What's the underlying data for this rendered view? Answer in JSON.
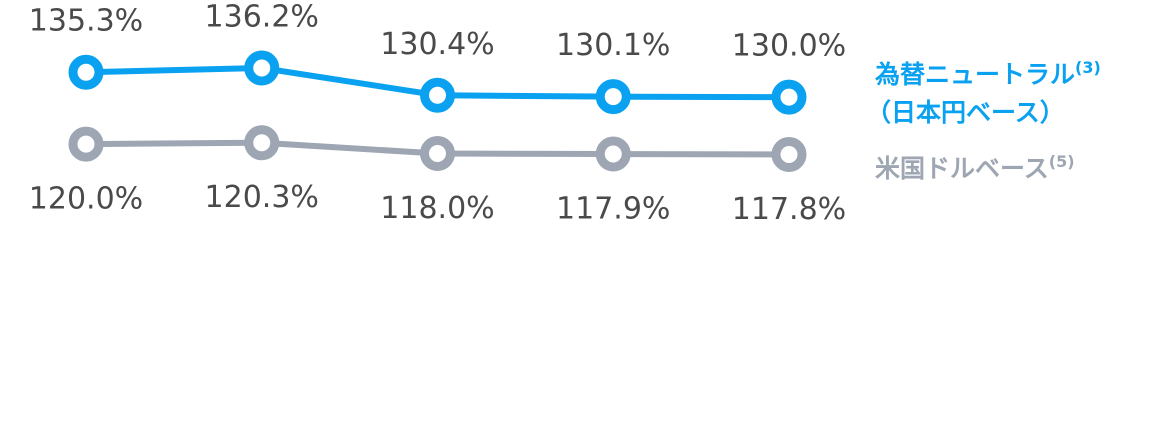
{
  "chart_data": {
    "type": "line",
    "series": [
      {
        "name": "為替ニュートラル",
        "name_note": "(3)",
        "name_line2": "（日本円ベース）",
        "color": "#0aa2f0",
        "values": [
          135.3,
          136.2,
          130.4,
          130.1,
          130.0
        ],
        "value_labels": [
          "135.3%",
          "136.2%",
          "130.4%",
          "130.1%",
          "130.0%"
        ]
      },
      {
        "name": "米国ドルベース",
        "name_note": "(5)",
        "color": "#9da6b2",
        "values": [
          120.0,
          120.3,
          118.0,
          117.9,
          117.8
        ],
        "value_labels": [
          "120.0%",
          "120.3%",
          "118.0%",
          "117.9%",
          "117.8%"
        ]
      }
    ]
  }
}
